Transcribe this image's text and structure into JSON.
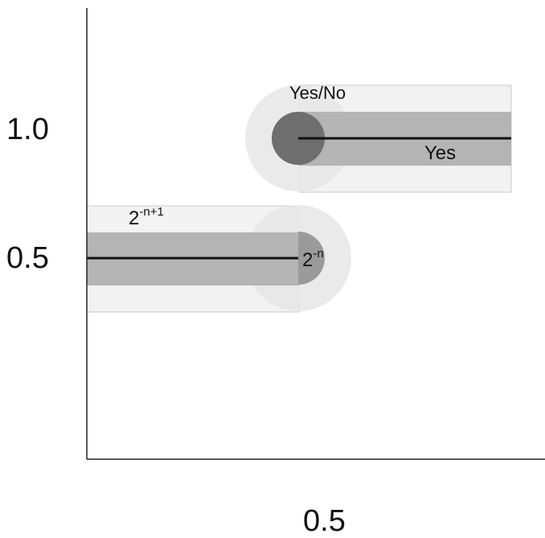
{
  "axes": {
    "x_tick_label": "0.5",
    "y_tick_labels": [
      "1.0",
      "0.5"
    ]
  },
  "upper_segment": {
    "top_label": "Yes/No",
    "line_label": "Yes"
  },
  "lower_segment": {
    "top_label_base": "2",
    "top_label_exponent": "-n+1",
    "end_label_base": "2",
    "end_label_exponent": "-n"
  },
  "colors": {
    "outer_band": "#f2f2f2",
    "outer_band_border": "#c8c8c8",
    "inner_band": "#b4b4b4",
    "halo": "#e6e6e6",
    "point_dark": "#6e6e6e",
    "point_mid": "#9a9a9a",
    "line": "#111111"
  }
}
